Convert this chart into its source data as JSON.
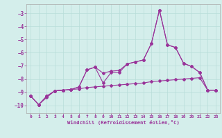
{
  "xlabel": "Windchill (Refroidissement éolien,°C)",
  "background_color": "#d4eeeb",
  "grid_color": "#b8ddd9",
  "line_color": "#993399",
  "xlim": [
    -0.5,
    23.5
  ],
  "ylim": [
    -10.6,
    -2.3
  ],
  "yticks": [
    -10,
    -9,
    -8,
    -7,
    -6,
    -5,
    -4,
    -3
  ],
  "xticks": [
    0,
    1,
    2,
    3,
    4,
    5,
    6,
    7,
    8,
    9,
    10,
    11,
    12,
    13,
    14,
    15,
    16,
    17,
    18,
    19,
    20,
    21,
    22,
    23
  ],
  "line1_x": [
    0,
    1,
    2,
    3,
    4,
    5,
    6,
    7,
    8,
    9,
    10,
    11,
    12,
    13,
    14,
    15,
    16,
    17,
    18,
    19,
    20,
    21,
    22,
    23
  ],
  "line1_y": [
    -9.3,
    -9.95,
    -9.4,
    -8.9,
    -8.85,
    -8.8,
    -8.75,
    -8.65,
    -8.6,
    -8.55,
    -8.5,
    -8.45,
    -8.4,
    -8.35,
    -8.3,
    -8.2,
    -8.15,
    -8.1,
    -8.05,
    -8.0,
    -7.95,
    -7.9,
    -8.85,
    -8.85
  ],
  "line2_x": [
    0,
    1,
    2,
    3,
    4,
    5,
    6,
    7,
    8,
    9,
    10,
    11,
    12,
    13,
    14,
    15,
    16,
    17,
    18,
    19,
    20,
    21,
    22,
    23
  ],
  "line2_y": [
    -9.3,
    -9.95,
    -9.3,
    -8.9,
    -8.85,
    -8.8,
    -8.6,
    -7.3,
    -7.1,
    -7.55,
    -7.4,
    -7.35,
    -6.85,
    -6.7,
    -6.55,
    -5.3,
    -2.75,
    -5.4,
    -5.6,
    -6.8,
    -7.05,
    -7.5,
    -8.85,
    -8.85
  ],
  "line3_x": [
    0,
    1,
    2,
    3,
    4,
    5,
    6,
    7,
    8,
    9,
    10,
    11,
    12,
    13,
    14,
    15,
    16,
    17,
    18,
    19,
    20,
    21,
    22,
    23
  ],
  "line3_y": [
    -9.3,
    -9.95,
    -9.3,
    -8.9,
    -8.85,
    -8.8,
    -8.6,
    -7.3,
    -7.1,
    -8.3,
    -7.5,
    -7.5,
    -6.85,
    -6.7,
    -6.55,
    -5.3,
    -2.75,
    -5.4,
    -5.6,
    -6.8,
    -7.05,
    -7.5,
    -8.85,
    -8.85
  ]
}
